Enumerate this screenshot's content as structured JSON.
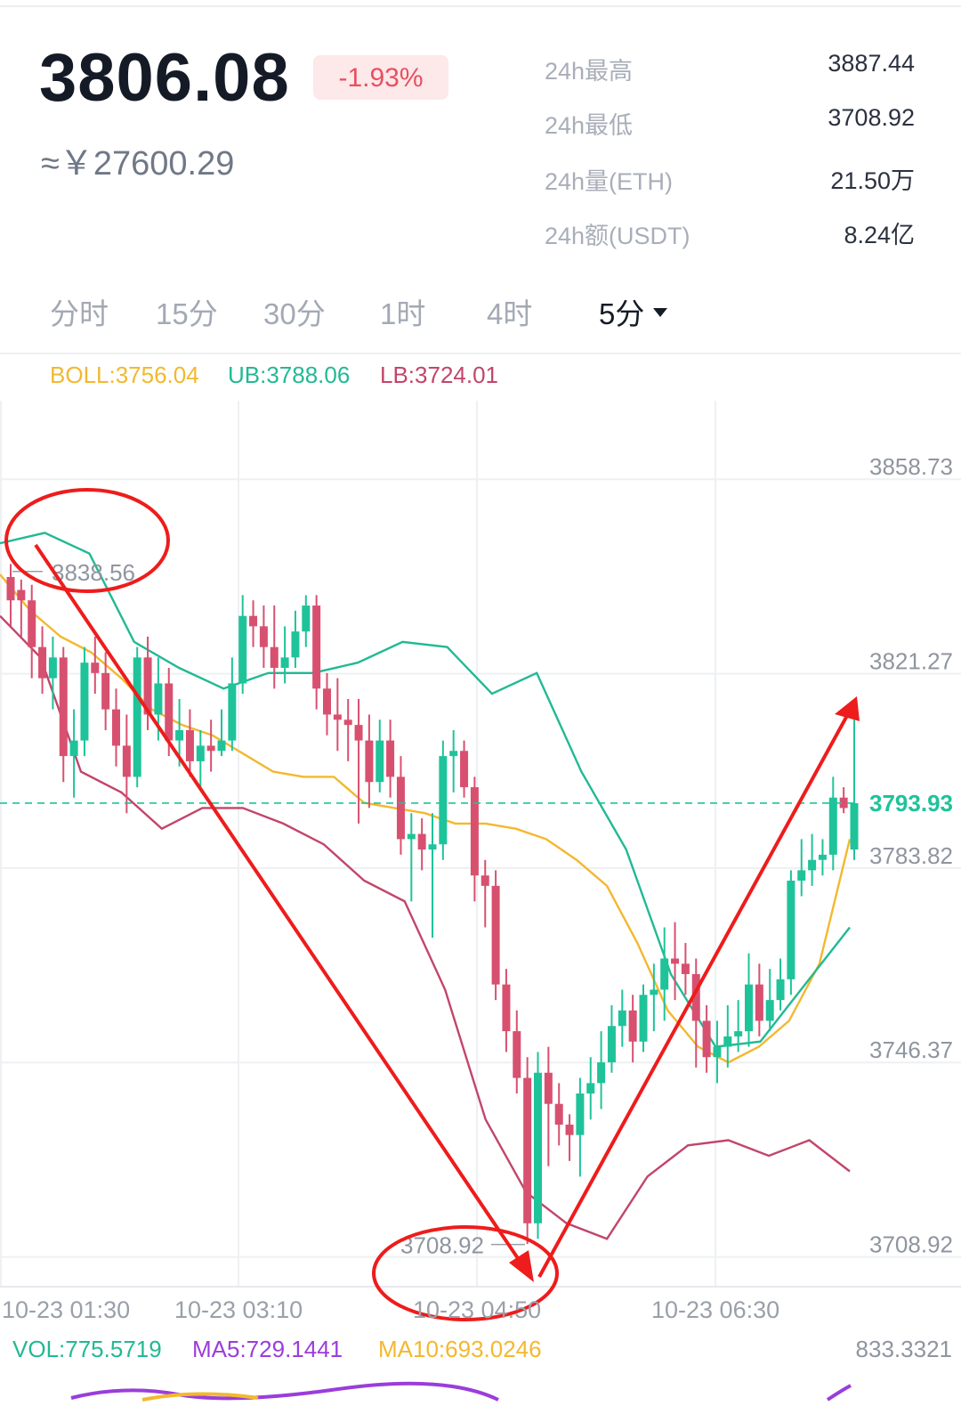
{
  "ticker": {
    "price": "3806.08",
    "change": "-1.93%",
    "cny": "≈￥27600.29"
  },
  "stats": [
    {
      "label": "24h最高",
      "value": "3887.44"
    },
    {
      "label": "24h最低",
      "value": "3708.92"
    },
    {
      "label": "24h量(ETH)",
      "value": "21.50万"
    },
    {
      "label": "24h额(USDT)",
      "value": "8.24亿"
    }
  ],
  "tabs": [
    "分时",
    "15分",
    "30分",
    "1时",
    "4时",
    "5分"
  ],
  "legend": {
    "boll": "BOLL:3756.04",
    "ub": "UB:3788.06",
    "lb": "LB:3724.01"
  },
  "colors": {
    "up": "#1fc39a",
    "down": "#d8506f",
    "boll": "#f3b82e",
    "ub": "#22b994",
    "lb": "#c2456a",
    "annotation": "#ee1c1c",
    "ma5": "#9a3ddb",
    "ma10": "#f3b82e"
  },
  "chart_data": {
    "type": "candlestick",
    "y_ticks": [
      "3858.73",
      "3821.27",
      "3783.82",
      "3746.37",
      "3708.92"
    ],
    "ylim": [
      3702.5,
      3867
    ],
    "x_ticks": [
      "10-23 01:30",
      "10-23 03:10",
      "10-23 04:50",
      "10-23 06:30"
    ],
    "current_price": "3793.93",
    "annotations": {
      "high": "3838.56",
      "low": "3708.92"
    },
    "candles": [
      [
        3837.5,
        3833,
        3840,
        3828
      ],
      [
        3835,
        3833,
        3837,
        3826
      ],
      [
        3833,
        3824,
        3836,
        3818
      ],
      [
        3824,
        3818,
        3828,
        3815
      ],
      [
        3818,
        3822,
        3826,
        3812
      ],
      [
        3822,
        3803,
        3824,
        3798
      ],
      [
        3803,
        3806,
        3812,
        3795
      ],
      [
        3806,
        3821,
        3824,
        3803
      ],
      [
        3821,
        3819,
        3826,
        3815
      ],
      [
        3819,
        3812,
        3823,
        3808
      ],
      [
        3812,
        3805,
        3816,
        3801
      ],
      [
        3805,
        3799,
        3811,
        3792
      ],
      [
        3799,
        3822,
        3824,
        3797
      ],
      [
        3822,
        3811,
        3826,
        3808
      ],
      [
        3811,
        3817,
        3822,
        3806
      ],
      [
        3817,
        3806,
        3820,
        3803
      ],
      [
        3806,
        3808,
        3814,
        3801
      ],
      [
        3808,
        3802,
        3812,
        3799
      ],
      [
        3802,
        3805,
        3808,
        3797
      ],
      [
        3805,
        3804,
        3810,
        3800
      ],
      [
        3804,
        3806,
        3812,
        3803
      ],
      [
        3806,
        3817,
        3822,
        3804
      ],
      [
        3817,
        3830,
        3834,
        3815
      ],
      [
        3830,
        3828,
        3833,
        3824
      ],
      [
        3828,
        3824,
        3832,
        3820
      ],
      [
        3824,
        3820,
        3832,
        3816
      ],
      [
        3820,
        3822,
        3828,
        3817
      ],
      [
        3822,
        3827,
        3831,
        3820
      ],
      [
        3827,
        3832,
        3834,
        3824
      ],
      [
        3832,
        3816,
        3834,
        3812
      ],
      [
        3816,
        3811,
        3819,
        3807
      ],
      [
        3811,
        3810,
        3818,
        3804
      ],
      [
        3810,
        3809,
        3814,
        3802
      ],
      [
        3809,
        3806,
        3814,
        3790
      ],
      [
        3806,
        3798,
        3811,
        3793
      ],
      [
        3798,
        3806,
        3810,
        3796
      ],
      [
        3806,
        3799,
        3810,
        3795
      ],
      [
        3799,
        3787,
        3803,
        3784
      ],
      [
        3787,
        3788,
        3792,
        3775
      ],
      [
        3788,
        3785,
        3791,
        3781
      ],
      [
        3785,
        3786,
        3792,
        3768
      ],
      [
        3786,
        3803,
        3806,
        3783
      ],
      [
        3803,
        3804,
        3808,
        3796
      ],
      [
        3804,
        3797,
        3806,
        3795
      ],
      [
        3797,
        3780,
        3799,
        3775
      ],
      [
        3780,
        3778,
        3783,
        3770
      ],
      [
        3778,
        3759,
        3781,
        3756
      ],
      [
        3759,
        3750,
        3762,
        3746
      ],
      [
        3750,
        3741,
        3754,
        3738
      ],
      [
        3741,
        3713,
        3745,
        3709
      ],
      [
        3713,
        3742,
        3746,
        3710
      ],
      [
        3742,
        3736,
        3747,
        3724
      ],
      [
        3736,
        3732,
        3740,
        3728
      ],
      [
        3732,
        3730,
        3734,
        3725
      ],
      [
        3730,
        3738,
        3741,
        3722
      ],
      [
        3738,
        3740,
        3745,
        3733
      ],
      [
        3740,
        3744,
        3750,
        3735
      ],
      [
        3744,
        3751,
        3755,
        3742
      ],
      [
        3751,
        3754,
        3758,
        3747
      ],
      [
        3754,
        3748,
        3757,
        3744
      ],
      [
        3748,
        3757,
        3759,
        3746
      ],
      [
        3757,
        3758,
        3763,
        3750
      ],
      [
        3758,
        3764,
        3770,
        3752
      ],
      [
        3764,
        3763,
        3771,
        3756
      ],
      [
        3763,
        3761,
        3767,
        3757
      ],
      [
        3761,
        3752,
        3764,
        3743
      ],
      [
        3752,
        3745,
        3755,
        3742
      ],
      [
        3745,
        3747,
        3752,
        3740
      ],
      [
        3747,
        3749,
        3755,
        3743
      ],
      [
        3749,
        3750,
        3756,
        3746
      ],
      [
        3750,
        3759,
        3765,
        3747
      ],
      [
        3759,
        3752,
        3763,
        3749
      ],
      [
        3752,
        3756,
        3762,
        3750
      ],
      [
        3756,
        3760,
        3764,
        3754
      ],
      [
        3760,
        3779,
        3781,
        3757
      ],
      [
        3779,
        3781,
        3787,
        3776
      ],
      [
        3781,
        3783,
        3788,
        3778
      ],
      [
        3783,
        3784,
        3787,
        3780
      ],
      [
        3784,
        3795,
        3799,
        3781
      ],
      [
        3795,
        3793,
        3797,
        3792
      ],
      [
        3785,
        3793.93,
        3810,
        3783
      ]
    ],
    "boll_mid": [
      3838,
      3831,
      3826,
      3823,
      3818,
      3812,
      3809,
      3807,
      3803.5,
      3800,
      3799,
      3799,
      3794,
      3793,
      3792,
      3790,
      3790,
      3789,
      3787,
      3783,
      3778,
      3767,
      3754,
      3747,
      3744,
      3747,
      3752,
      3763,
      3787
    ],
    "ub_line": [
      3844,
      3846,
      3842,
      3825,
      3820,
      3816,
      3819,
      3819,
      3821,
      3825,
      3824,
      3815,
      3819,
      3800,
      3785,
      3761,
      3747,
      3748,
      3759,
      3770
    ],
    "lb_line": [
      3830,
      3822,
      3800,
      3796,
      3789,
      3793,
      3793,
      3790,
      3786,
      3779,
      3775,
      3758,
      3733,
      3719,
      3713,
      3710,
      3722,
      3728,
      3729,
      3726,
      3729,
      3723
    ]
  },
  "volume": {
    "vol": "VOL:775.5719",
    "ma5": "MA5:729.1441",
    "ma10": "MA10:693.0246",
    "max": "833.3321"
  }
}
